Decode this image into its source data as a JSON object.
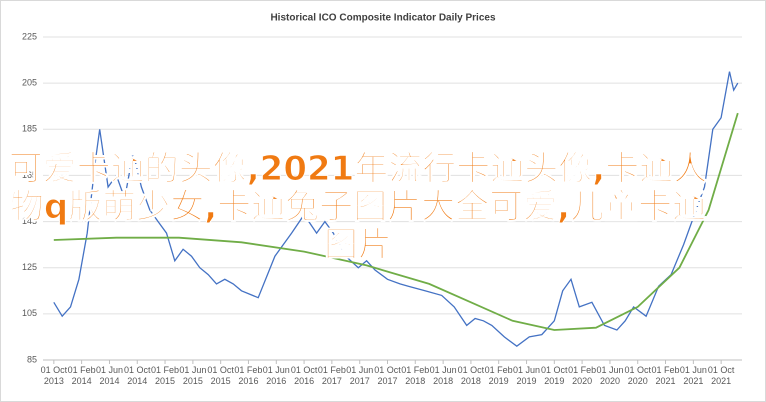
{
  "chart_data": {
    "type": "line",
    "title": "Historical ICO Composite Indicator Daily Prices",
    "overlay_text": "可爱卡通的头像,2021年流行卡通头像,卡通人物q版萌少女,卡通兔子图片大全可爱,儿童卡通图片",
    "xlim": [
      2013.62,
      2022.0
    ],
    "ylim": [
      85,
      225
    ],
    "yticks": [
      85,
      105,
      125,
      145,
      165,
      185,
      205,
      225
    ],
    "xticks": [
      {
        "value": 2013.75,
        "label": "01 Oct 2013"
      },
      {
        "value": 2014.083,
        "label": "01 Feb 2014"
      },
      {
        "value": 2014.417,
        "label": "01 Jun 2014"
      },
      {
        "value": 2014.75,
        "label": "01 Oct 2014"
      },
      {
        "value": 2015.083,
        "label": "01 Feb 2015"
      },
      {
        "value": 2015.417,
        "label": "01 Jun 2015"
      },
      {
        "value": 2015.75,
        "label": "01 Oct 2015"
      },
      {
        "value": 2016.083,
        "label": "01 Feb 2016"
      },
      {
        "value": 2016.417,
        "label": "01 Jun 2016"
      },
      {
        "value": 2016.75,
        "label": "01 Oct 2016"
      },
      {
        "value": 2017.083,
        "label": "01 Feb 2017"
      },
      {
        "value": 2017.417,
        "label": "01 Jun 2017"
      },
      {
        "value": 2017.75,
        "label": "01 Oct 2017"
      },
      {
        "value": 2018.083,
        "label": "01 Feb 2018"
      },
      {
        "value": 2018.417,
        "label": "01 Jun 2018"
      },
      {
        "value": 2018.75,
        "label": "01 Oct 2018"
      },
      {
        "value": 2019.083,
        "label": "01 Feb 2019"
      },
      {
        "value": 2019.417,
        "label": "01 Jun 2019"
      },
      {
        "value": 2019.75,
        "label": "01 Oct 2019"
      },
      {
        "value": 2020.083,
        "label": "01 Feb 2020"
      },
      {
        "value": 2020.417,
        "label": "01 Jun 2020"
      },
      {
        "value": 2020.75,
        "label": "01 Oct 2020"
      },
      {
        "value": 2021.083,
        "label": "01 Feb 2021"
      },
      {
        "value": 2021.417,
        "label": "01 Jun 2021"
      },
      {
        "value": 2021.75,
        "label": "01 Oct 2021"
      }
    ],
    "grid": true,
    "series": [
      {
        "color": "#4472c4",
        "x": [
          2013.75,
          2013.85,
          2013.95,
          2014.05,
          2014.15,
          2014.25,
          2014.3,
          2014.4,
          2014.5,
          2014.6,
          2014.7,
          2014.8,
          2014.9,
          2015.0,
          2015.1,
          2015.2,
          2015.3,
          2015.4,
          2015.5,
          2015.6,
          2015.7,
          2015.8,
          2015.9,
          2016.0,
          2016.2,
          2016.4,
          2016.6,
          2016.75,
          2016.9,
          2017.0,
          2017.1,
          2017.25,
          2017.4,
          2017.5,
          2017.6,
          2017.75,
          2017.9,
          2018.0,
          2018.2,
          2018.4,
          2018.55,
          2018.7,
          2018.8,
          2018.9,
          2019.0,
          2019.15,
          2019.3,
          2019.45,
          2019.6,
          2019.75,
          2019.85,
          2019.95,
          2020.05,
          2020.2,
          2020.35,
          2020.5,
          2020.6,
          2020.7,
          2020.85,
          2021.0,
          2021.15,
          2021.3,
          2021.45,
          2021.55,
          2021.65,
          2021.75,
          2021.85,
          2021.9,
          2021.95
        ],
        "values": [
          110,
          104,
          108,
          120,
          140,
          172,
          185,
          160,
          165,
          155,
          175,
          160,
          150,
          145,
          140,
          128,
          133,
          130,
          125,
          122,
          118,
          120,
          118,
          115,
          112,
          130,
          140,
          148,
          140,
          145,
          140,
          130,
          125,
          128,
          124,
          120,
          118,
          117,
          115,
          113,
          108,
          100,
          103,
          102,
          100,
          95,
          91,
          95,
          96,
          102,
          115,
          120,
          108,
          110,
          100,
          98,
          102,
          108,
          104,
          117,
          122,
          135,
          150,
          160,
          185,
          190,
          210,
          202,
          205
        ]
      },
      {
        "color": "#70ad47",
        "x": [
          2013.75,
          2014.5,
          2015.25,
          2016.0,
          2016.75,
          2017.5,
          2018.25,
          2018.75,
          2019.25,
          2019.75,
          2020.25,
          2020.75,
          2021.25,
          2021.6,
          2021.95
        ],
        "values": [
          137,
          138,
          138,
          136,
          132,
          126,
          118,
          110,
          102,
          98,
          99,
          108,
          125,
          150,
          192
        ]
      }
    ]
  }
}
